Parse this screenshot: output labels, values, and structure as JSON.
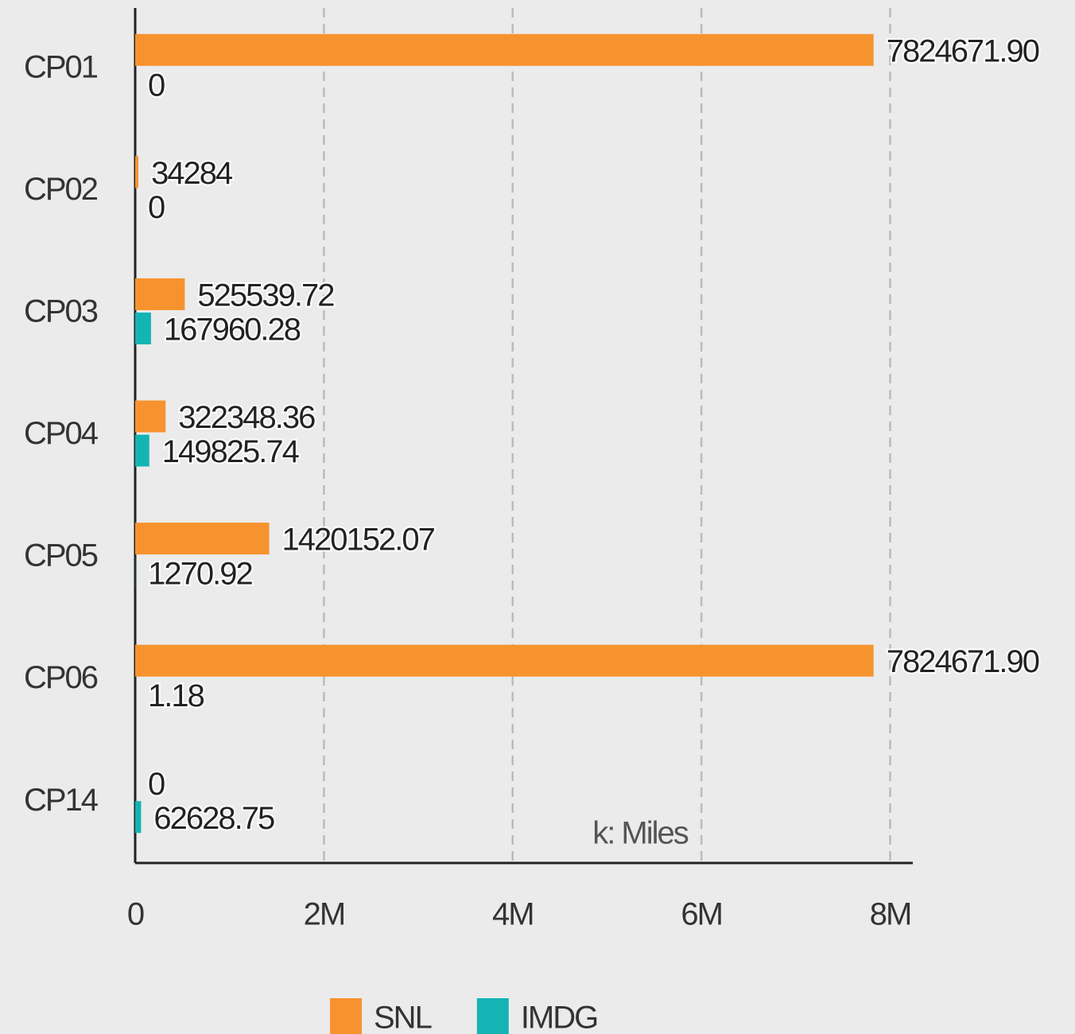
{
  "chart_data": {
    "type": "hbar",
    "annotation": "k: Miles",
    "categories": [
      "CP01",
      "CP02",
      "CP03",
      "CP04",
      "CP05",
      "CP06",
      "CP14"
    ],
    "series": [
      {
        "name": "SNL",
        "color": "#f7932f",
        "values": [
          7824671.9,
          34284,
          525539.72,
          322348.36,
          1420152.07,
          7824671.9,
          0
        ],
        "value_labels": [
          "7824671.90",
          "34284",
          "525539.72",
          "322348.36",
          "1420152.07",
          "7824671.90",
          "0"
        ]
      },
      {
        "name": "IMDG",
        "color": "#14b4b4",
        "values": [
          0,
          0,
          167960.28,
          149825.74,
          1270.92,
          1.18,
          62628.75
        ],
        "value_labels": [
          "0",
          "0",
          "167960.28",
          "149825.74",
          "1270.92",
          "1.18",
          "62628.75"
        ]
      }
    ],
    "xlim": [
      0,
      8240000
    ],
    "xticks": [
      0,
      {
        "value": 2000000,
        "label": "2M"
      },
      {
        "value": 4000000,
        "label": "4M"
      },
      {
        "value": 6000000,
        "label": "6M"
      },
      {
        "value": 8000000,
        "label": "8M"
      }
    ],
    "grid": true,
    "legend": "bottom"
  }
}
